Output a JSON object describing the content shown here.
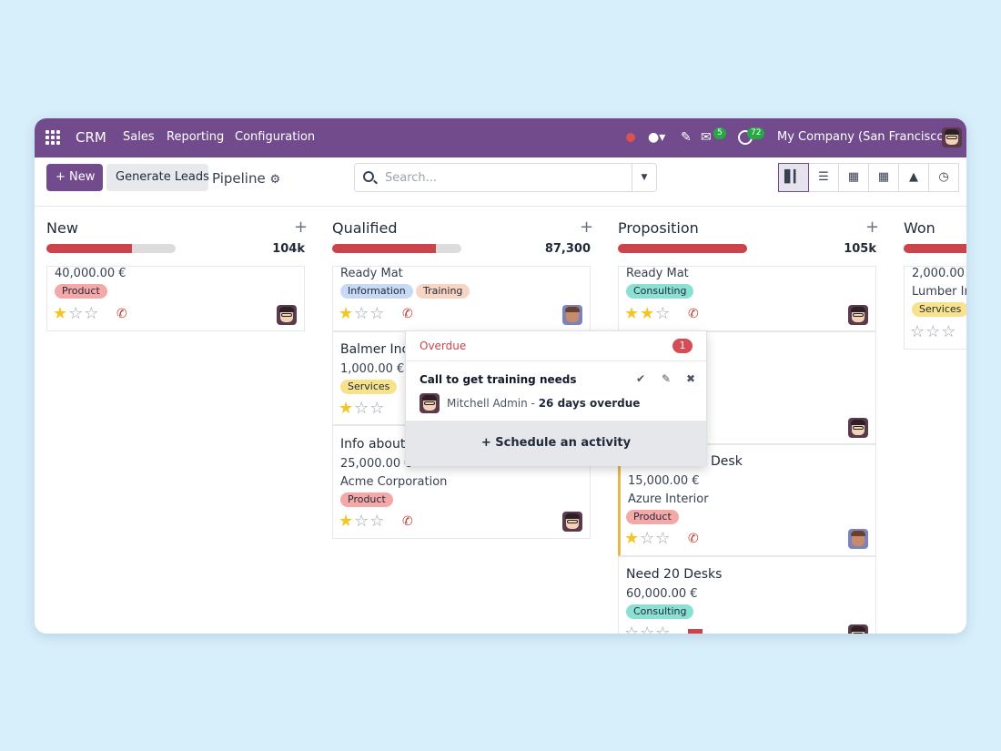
{
  "topbar": {
    "app_title": "CRM",
    "menu": [
      "Sales",
      "Reporting",
      "Configuration"
    ],
    "messages_count": "5",
    "activities_count": "72",
    "company": "My Company (San Francisco)",
    "icons": [
      "record-dot-icon",
      "drop-icon",
      "pencil-icon",
      "chat-icon",
      "clock-icon"
    ]
  },
  "control_panel": {
    "new_label": "+ New",
    "generate_label": "Generate Leads",
    "breadcrumb": "Pipeline",
    "search_placeholder": "Search...",
    "views": [
      "kanban-icon",
      "list-icon",
      "calendar-icon",
      "pivot-icon",
      "graph-icon",
      "activity-icon"
    ]
  },
  "columns": [
    {
      "title": "New",
      "total": "104k",
      "progress": 0.66
    },
    {
      "title": "Qualified",
      "total": "87,300",
      "progress": 0.8
    },
    {
      "title": "Proposition",
      "total": "105k",
      "progress": 1.0
    },
    {
      "title": "Won",
      "total": "",
      "progress": 1.0
    }
  ],
  "cards": {
    "new1": {
      "amount": "40,000.00 €",
      "tag": "Product",
      "stars": 1
    },
    "q1": {
      "name": "Ready Mat",
      "tags": [
        "Information",
        "Training"
      ],
      "stars": 1
    },
    "q2": {
      "name": "Balmer Inc:",
      "amount": "1,000.00 €",
      "tags": [
        "Services"
      ],
      "stars": 1
    },
    "q3": {
      "name": "Info about",
      "amount": "25,000.00 €",
      "company": "Acme Corporation",
      "tag": "Product",
      "stars": 1
    },
    "p1": {
      "name": "Ready Mat",
      "tag": "Consulting",
      "stars": 2
    },
    "p3": {
      "name_tail": "Desk",
      "amount": "15,000.00 €",
      "company": "Azure Interior",
      "tag": "Product",
      "stars": 1
    },
    "p4": {
      "name": "Need 20 Desks",
      "amount": "60,000.00 €",
      "tag": "Consulting",
      "stars": 0
    },
    "w1": {
      "amount": "2,000.00 €",
      "company": "Lumber Inc",
      "tag": "Services",
      "stars": 0
    }
  },
  "popup": {
    "header": "Overdue",
    "count": "1",
    "activity": "Call to get training needs",
    "user": "Mitchell Admin",
    "overdue_text": "26 days overdue",
    "schedule_label": "Schedule an activity"
  }
}
